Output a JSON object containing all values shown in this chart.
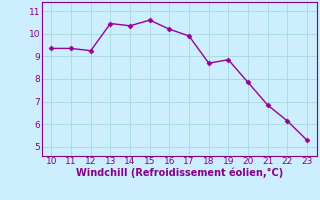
{
  "x": [
    10,
    11,
    12,
    13,
    14,
    15,
    16,
    17,
    18,
    19,
    20,
    21,
    22,
    23
  ],
  "y": [
    9.35,
    9.35,
    9.25,
    10.45,
    10.35,
    10.6,
    10.2,
    9.9,
    8.7,
    8.85,
    7.85,
    6.85,
    6.15,
    5.3
  ],
  "line_color": "#990099",
  "marker": "D",
  "marker_size": 2.5,
  "bg_color": "#cceeff",
  "grid_color": "#aadddd",
  "xlabel": "Windchill (Refroidissement éolien,°C)",
  "xlim": [
    9.5,
    23.5
  ],
  "ylim": [
    4.6,
    11.4
  ],
  "xticks": [
    10,
    11,
    12,
    13,
    14,
    15,
    16,
    17,
    18,
    19,
    20,
    21,
    22,
    23
  ],
  "yticks": [
    5,
    6,
    7,
    8,
    9,
    10,
    11
  ],
  "xlabel_color": "#880088",
  "tick_color": "#880088",
  "axis_color": "#880088",
  "linewidth": 1.0,
  "xlabel_fontsize": 7.0,
  "tick_fontsize": 6.5
}
